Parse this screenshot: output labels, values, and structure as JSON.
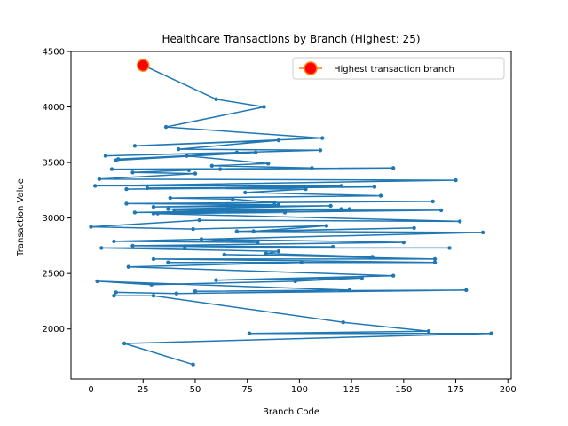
{
  "chart_data": {
    "type": "line",
    "title": "Healthcare Transactions by Branch (Highest: 25)",
    "xlabel": "Branch Code",
    "ylabel": "Transaction Value",
    "xlim": [
      -9.6,
      201.6
    ],
    "ylim": [
      1550,
      4500
    ],
    "xticks": [
      0,
      25,
      50,
      75,
      100,
      125,
      150,
      175,
      200
    ],
    "yticks": [
      2000,
      2500,
      3000,
      3500,
      4000,
      4500
    ],
    "grid": false,
    "legend": {
      "placement": "top-right",
      "entries": [
        "Highest transaction branch"
      ]
    },
    "colors": {
      "line": "#1f77b4",
      "highlight": "#ff0000",
      "highlight_edge": "#ff7f0e"
    },
    "series": [
      {
        "x": [
          25,
          60,
          83,
          36,
          111,
          21,
          90,
          42,
          110,
          7,
          70,
          12,
          79,
          13,
          46,
          85,
          58,
          106,
          62,
          145,
          10,
          47,
          20,
          50,
          4,
          175,
          2,
          120,
          17,
          136,
          27,
          103,
          74,
          139,
          38,
          68,
          88,
          164,
          17,
          90,
          30,
          115,
          37,
          120,
          21,
          93,
          32,
          124,
          40,
          168,
          30,
          177,
          52,
          0,
          49,
          113,
          78,
          155,
          70,
          188,
          11,
          80,
          53,
          150,
          20,
          116,
          45,
          172,
          5,
          90,
          84,
          135,
          64,
          165,
          30,
          165,
          37,
          101,
          18,
          145,
          60,
          130,
          98,
          29,
          3,
          124,
          50,
          180,
          41,
          12,
          11,
          30,
          121,
          162,
          76,
          192,
          16,
          49
        ],
        "y": [
          4375,
          4070,
          4000,
          3820,
          3720,
          3650,
          3700,
          3620,
          3610,
          3560,
          3590,
          3520,
          3590,
          3530,
          3560,
          3490,
          3470,
          3450,
          3440,
          3450,
          3440,
          3430,
          3410,
          3400,
          3350,
          3340,
          3290,
          3290,
          3260,
          3280,
          3270,
          3260,
          3230,
          3200,
          3180,
          3170,
          3140,
          3150,
          3130,
          3120,
          3100,
          3110,
          3080,
          3080,
          3050,
          3050,
          3040,
          3080,
          3070,
          3070,
          3040,
          2970,
          2980,
          2920,
          2900,
          2930,
          2880,
          2910,
          2880,
          2870,
          2790,
          2780,
          2810,
          2780,
          2750,
          2740,
          2730,
          2730,
          2730,
          2700,
          2680,
          2650,
          2670,
          2630,
          2630,
          2600,
          2600,
          2600,
          2560,
          2480,
          2440,
          2460,
          2430,
          2400,
          2430,
          2350,
          2340,
          2350,
          2320,
          2330,
          2300,
          2300,
          2060,
          1980,
          1960,
          1960,
          1870,
          1680
        ]
      },
      {
        "name": "Highest transaction branch",
        "x": [
          25
        ],
        "y": [
          4375
        ]
      }
    ]
  }
}
